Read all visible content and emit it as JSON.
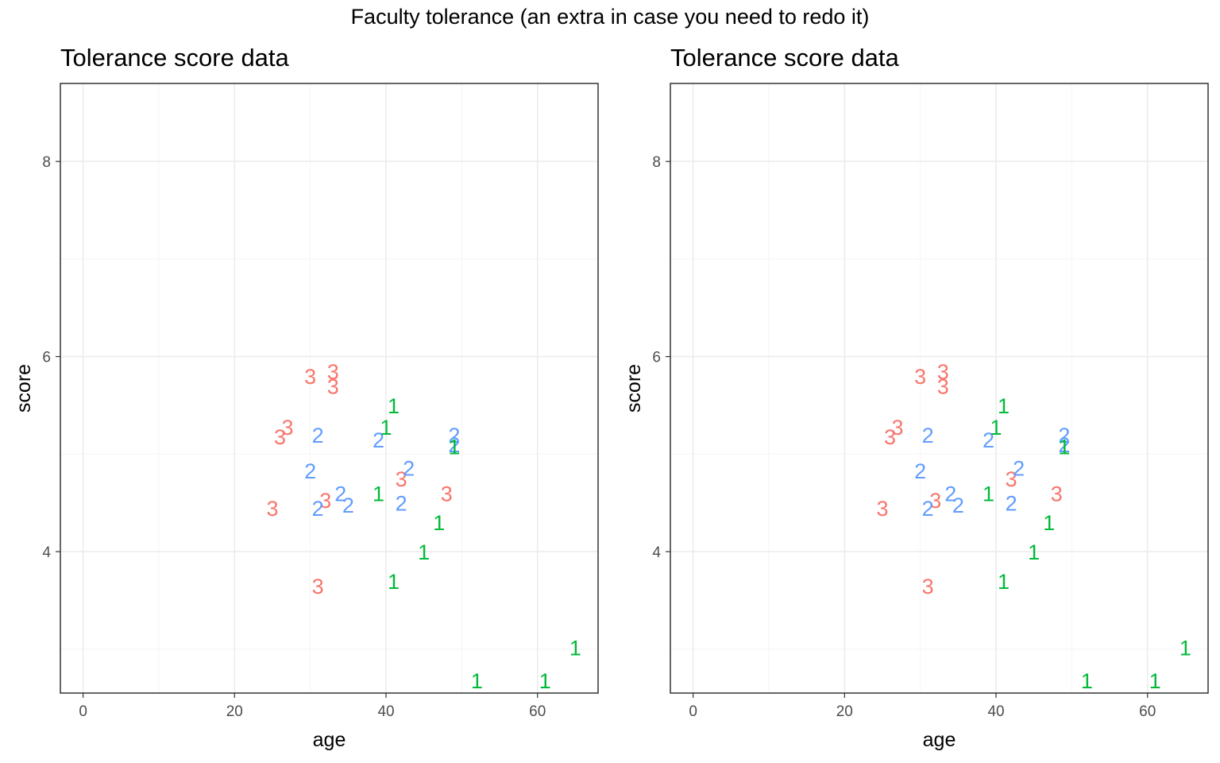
{
  "figure": {
    "title": "Faculty tolerance (an extra in case you need to redo it)"
  },
  "colors": {
    "group_1": "#00BA38",
    "group_2": "#619CFF",
    "group_3": "#F8766D",
    "grid_major": "#ebebeb",
    "grid_minor": "#f4f4f4",
    "axis_text": "#4d4d4d",
    "panel_border": "#333333"
  },
  "chart_data": [
    {
      "type": "scatter",
      "title": "Tolerance score data",
      "xlabel": "age",
      "ylabel": "score",
      "xlim": [
        -3,
        68
      ],
      "ylim": [
        2.55,
        8.8
      ],
      "xticks": [
        0,
        20,
        40,
        60
      ],
      "yticks": [
        4,
        6,
        8
      ],
      "grid": true,
      "legend": "none",
      "marker": "text label (group number)",
      "points": [
        {
          "x": 30,
          "y": 5.8,
          "label": "3"
        },
        {
          "x": 33,
          "y": 5.85,
          "label": "3"
        },
        {
          "x": 33,
          "y": 5.7,
          "label": "3"
        },
        {
          "x": 27,
          "y": 5.28,
          "label": "3"
        },
        {
          "x": 26,
          "y": 5.18,
          "label": "3"
        },
        {
          "x": 25,
          "y": 4.45,
          "label": "3"
        },
        {
          "x": 32,
          "y": 4.53,
          "label": "3"
        },
        {
          "x": 31,
          "y": 3.65,
          "label": "3"
        },
        {
          "x": 42,
          "y": 4.75,
          "label": "3"
        },
        {
          "x": 48,
          "y": 4.6,
          "label": "3"
        },
        {
          "x": 31,
          "y": 5.2,
          "label": "2"
        },
        {
          "x": 30,
          "y": 4.83,
          "label": "2"
        },
        {
          "x": 31,
          "y": 4.45,
          "label": "2"
        },
        {
          "x": 34,
          "y": 4.6,
          "label": "2"
        },
        {
          "x": 35,
          "y": 4.48,
          "label": "2"
        },
        {
          "x": 39,
          "y": 5.15,
          "label": "2"
        },
        {
          "x": 43,
          "y": 4.86,
          "label": "2"
        },
        {
          "x": 42,
          "y": 4.5,
          "label": "2"
        },
        {
          "x": 49,
          "y": 5.2,
          "label": "2"
        },
        {
          "x": 49,
          "y": 5.1,
          "label": "2"
        },
        {
          "x": 41,
          "y": 5.5,
          "label": "1"
        },
        {
          "x": 40,
          "y": 5.28,
          "label": "1"
        },
        {
          "x": 39,
          "y": 4.6,
          "label": "1"
        },
        {
          "x": 49,
          "y": 5.08,
          "label": "1"
        },
        {
          "x": 47,
          "y": 4.3,
          "label": "1"
        },
        {
          "x": 45,
          "y": 4.0,
          "label": "1"
        },
        {
          "x": 41,
          "y": 3.7,
          "label": "1"
        },
        {
          "x": 65,
          "y": 3.02,
          "label": "1"
        },
        {
          "x": 52,
          "y": 2.68,
          "label": "1"
        },
        {
          "x": 61,
          "y": 2.68,
          "label": "1"
        }
      ]
    },
    {
      "type": "scatter",
      "title": "Tolerance score data",
      "xlabel": "age",
      "ylabel": "score",
      "xlim": [
        -3,
        68
      ],
      "ylim": [
        2.55,
        8.8
      ],
      "xticks": [
        0,
        20,
        40,
        60
      ],
      "yticks": [
        4,
        6,
        8
      ],
      "grid": true,
      "legend": "none",
      "marker": "text label (group number)",
      "points": [
        {
          "x": 30,
          "y": 5.8,
          "label": "3"
        },
        {
          "x": 33,
          "y": 5.85,
          "label": "3"
        },
        {
          "x": 33,
          "y": 5.7,
          "label": "3"
        },
        {
          "x": 27,
          "y": 5.28,
          "label": "3"
        },
        {
          "x": 26,
          "y": 5.18,
          "label": "3"
        },
        {
          "x": 25,
          "y": 4.45,
          "label": "3"
        },
        {
          "x": 32,
          "y": 4.53,
          "label": "3"
        },
        {
          "x": 31,
          "y": 3.65,
          "label": "3"
        },
        {
          "x": 42,
          "y": 4.75,
          "label": "3"
        },
        {
          "x": 48,
          "y": 4.6,
          "label": "3"
        },
        {
          "x": 31,
          "y": 5.2,
          "label": "2"
        },
        {
          "x": 30,
          "y": 4.83,
          "label": "2"
        },
        {
          "x": 31,
          "y": 4.45,
          "label": "2"
        },
        {
          "x": 34,
          "y": 4.6,
          "label": "2"
        },
        {
          "x": 35,
          "y": 4.48,
          "label": "2"
        },
        {
          "x": 39,
          "y": 5.15,
          "label": "2"
        },
        {
          "x": 43,
          "y": 4.86,
          "label": "2"
        },
        {
          "x": 42,
          "y": 4.5,
          "label": "2"
        },
        {
          "x": 49,
          "y": 5.2,
          "label": "2"
        },
        {
          "x": 49,
          "y": 5.1,
          "label": "2"
        },
        {
          "x": 41,
          "y": 5.5,
          "label": "1"
        },
        {
          "x": 40,
          "y": 5.28,
          "label": "1"
        },
        {
          "x": 39,
          "y": 4.6,
          "label": "1"
        },
        {
          "x": 49,
          "y": 5.08,
          "label": "1"
        },
        {
          "x": 47,
          "y": 4.3,
          "label": "1"
        },
        {
          "x": 45,
          "y": 4.0,
          "label": "1"
        },
        {
          "x": 41,
          "y": 3.7,
          "label": "1"
        },
        {
          "x": 65,
          "y": 3.02,
          "label": "1"
        },
        {
          "x": 52,
          "y": 2.68,
          "label": "1"
        },
        {
          "x": 61,
          "y": 2.68,
          "label": "1"
        }
      ]
    }
  ]
}
